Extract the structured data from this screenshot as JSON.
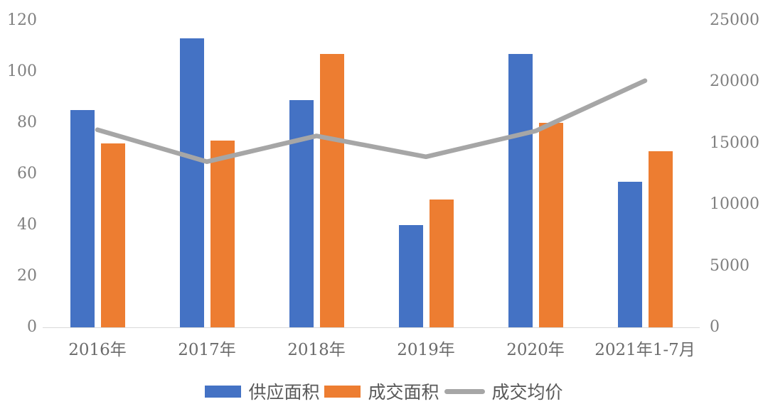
{
  "chart_data": {
    "type": "bar",
    "subtype": "combo-bar-line",
    "title": "",
    "categories": [
      "2016年",
      "2017年",
      "2018年",
      "2019年",
      "2020年",
      "2021年1-7月"
    ],
    "series": [
      {
        "name": "供应面积",
        "type": "bar",
        "axis": "left",
        "color": "#4472C4",
        "values": [
          85,
          113,
          89,
          40,
          107,
          57
        ]
      },
      {
        "name": "成交面积",
        "type": "bar",
        "axis": "left",
        "color": "#ED7D31",
        "values": [
          72,
          73,
          107,
          50,
          80,
          69
        ]
      },
      {
        "name": "成交均价",
        "type": "line",
        "axis": "right",
        "color": "#A6A6A6",
        "values": [
          16100,
          13500,
          15600,
          13900,
          16000,
          20100
        ]
      }
    ],
    "left_axis": {
      "min": 0,
      "max": 120,
      "step": 20,
      "ticks": [
        "0",
        "20",
        "40",
        "60",
        "80",
        "100",
        "120"
      ]
    },
    "right_axis": {
      "min": 0,
      "max": 25000,
      "step": 5000,
      "ticks": [
        "0",
        "5000",
        "10000",
        "15000",
        "20000",
        "25000"
      ]
    },
    "grid": false,
    "legend_position": "bottom",
    "axis_line_color": "#D9D9D9",
    "tick_label_color": "#7F7F7F"
  }
}
